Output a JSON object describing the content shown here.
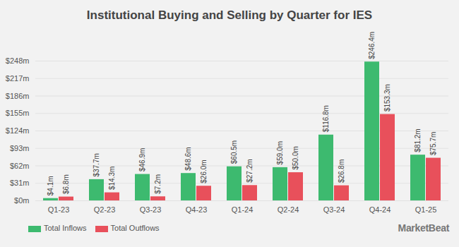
{
  "chart_data": {
    "type": "bar",
    "title": "Institutional Buying and Selling by Quarter for IES",
    "categories": [
      "Q1-23",
      "Q2-23",
      "Q3-23",
      "Q4-23",
      "Q1-24",
      "Q2-24",
      "Q3-24",
      "Q4-24",
      "Q1-25"
    ],
    "series": [
      {
        "name": "Total Inflows",
        "color": "#3dba6f",
        "values": [
          4.1,
          37.7,
          46.9,
          48.6,
          60.5,
          59.0,
          116.8,
          246.4,
          81.2
        ],
        "value_labels": [
          "$4.1m",
          "$37.7m",
          "$46.9m",
          "$48.6m",
          "$60.5m",
          "$59.0m",
          "$116.8m",
          "$246.4m",
          "$81.2m"
        ]
      },
      {
        "name": "Total Outflows",
        "color": "#e8505b",
        "values": [
          6.8,
          14.3,
          7.2,
          26.0,
          27.2,
          50.0,
          26.8,
          153.3,
          75.7
        ],
        "value_labels": [
          "$6.8m",
          "$14.3m",
          "$7.2m",
          "$26.0m",
          "$27.2m",
          "$50.0m",
          "$26.8m",
          "$153.3m",
          "$75.7m"
        ]
      }
    ],
    "ylim": [
      0,
      248
    ],
    "yticks": [
      {
        "value": 0,
        "label": "$0m"
      },
      {
        "value": 31,
        "label": "$31m"
      },
      {
        "value": 62,
        "label": "$62m"
      },
      {
        "value": 93,
        "label": "$93m"
      },
      {
        "value": 124,
        "label": "$124m"
      },
      {
        "value": 155,
        "label": "$155m"
      },
      {
        "value": 186,
        "label": "$186m"
      },
      {
        "value": 217,
        "label": "$217m"
      },
      {
        "value": 248,
        "label": "$248m"
      }
    ],
    "grid": true,
    "data_labels": true,
    "legend": "bottom-left",
    "annotation": "MarketBeat"
  }
}
